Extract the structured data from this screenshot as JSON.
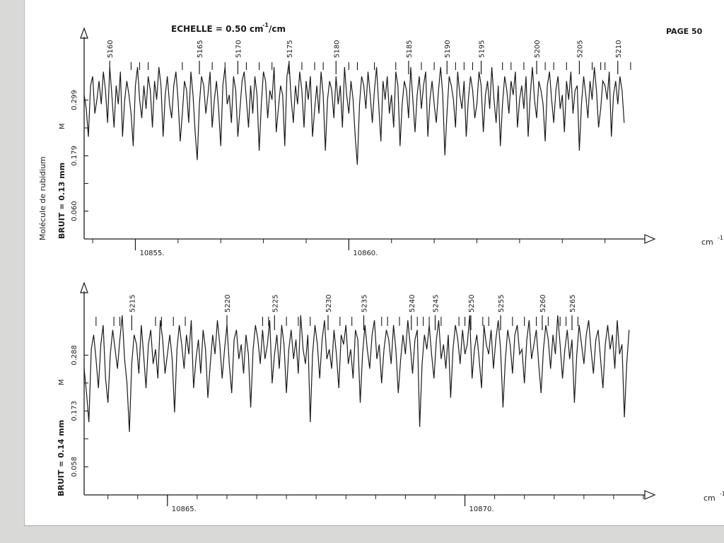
{
  "page": {
    "scale_label": "ECHELLE = 0.50 cm",
    "scale_exp": "-1",
    "scale_unit": "/cm",
    "page_number": "PAGE 50",
    "molecule_label": "Molécule de rubidium"
  },
  "chart_data": [
    {
      "type": "line",
      "xlabel": "cm",
      "xlabel_exp": "-1",
      "ylabel": "BRUIT = 0.13 mm",
      "y_marker": "M",
      "xlim": [
        10853.8,
        10866.9
      ],
      "ylim": [
        0,
        0.42
      ],
      "y_ticks": [
        "0.299",
        "0.179",
        "0.060"
      ],
      "y_tick_values": [
        0.299,
        0.179,
        0.06
      ],
      "x_tick_labels": [
        {
          "x": 10855,
          "label": "10855."
        },
        {
          "x": 10860,
          "label": "10860."
        }
      ],
      "x_minor_step": 1,
      "line_ids": [
        {
          "x": 10854.4,
          "label": "5160"
        },
        {
          "x": 10856.5,
          "label": "5165"
        },
        {
          "x": 10857.4,
          "label": "5170"
        },
        {
          "x": 10858.6,
          "label": "5175"
        },
        {
          "x": 10859.7,
          "label": "5180"
        },
        {
          "x": 10861.4,
          "label": "5185"
        },
        {
          "x": 10862.3,
          "label": "5190"
        },
        {
          "x": 10863.1,
          "label": "5195"
        },
        {
          "x": 10864.4,
          "label": "5200"
        },
        {
          "x": 10865.4,
          "label": "5205"
        },
        {
          "x": 10866.3,
          "label": "5210"
        }
      ],
      "minor_ids": [
        10854.9,
        10855.1,
        10855.3,
        10856.1,
        10856.8,
        10857.1,
        10857.6,
        10857.9,
        10858.2,
        10858.9,
        10859.2,
        10859.4,
        10860.0,
        10860.2,
        10860.6,
        10861.1,
        10861.7,
        10862.0,
        10862.5,
        10862.7,
        10862.9,
        10863.6,
        10863.8,
        10864.1,
        10864.6,
        10864.8,
        10865.1,
        10865.7,
        10865.9,
        10866.0,
        10866.6
      ],
      "series": [
        {
          "x_start": 10853.8,
          "x_step": 0.05,
          "values": [
            0.31,
            0.28,
            0.22,
            0.33,
            0.35,
            0.27,
            0.3,
            0.34,
            0.29,
            0.36,
            0.32,
            0.25,
            0.37,
            0.31,
            0.24,
            0.33,
            0.29,
            0.36,
            0.22,
            0.3,
            0.34,
            0.31,
            0.27,
            0.2,
            0.33,
            0.37,
            0.3,
            0.26,
            0.33,
            0.28,
            0.35,
            0.32,
            0.24,
            0.34,
            0.3,
            0.37,
            0.33,
            0.22,
            0.31,
            0.35,
            0.29,
            0.26,
            0.33,
            0.36,
            0.3,
            0.21,
            0.27,
            0.34,
            0.32,
            0.25,
            0.36,
            0.31,
            0.23,
            0.17,
            0.29,
            0.35,
            0.33,
            0.27,
            0.31,
            0.36,
            0.24,
            0.3,
            0.34,
            0.28,
            0.2,
            0.33,
            0.37,
            0.29,
            0.31,
            0.25,
            0.35,
            0.32,
            0.22,
            0.28,
            0.34,
            0.36,
            0.3,
            0.24,
            0.33,
            0.27,
            0.35,
            0.31,
            0.19,
            0.29,
            0.36,
            0.34,
            0.26,
            0.32,
            0.3,
            0.37,
            0.23,
            0.28,
            0.33,
            0.31,
            0.2,
            0.35,
            0.38,
            0.3,
            0.25,
            0.33,
            0.29,
            0.36,
            0.32,
            0.24,
            0.34,
            0.3,
            0.35,
            0.22,
            0.28,
            0.33,
            0.27,
            0.36,
            0.31,
            0.19,
            0.3,
            0.34,
            0.32,
            0.26,
            0.35,
            0.29,
            0.33,
            0.24,
            0.37,
            0.31,
            0.27,
            0.34,
            0.3,
            0.22,
            0.16,
            0.29,
            0.35,
            0.33,
            0.28,
            0.36,
            0.31,
            0.25,
            0.32,
            0.37,
            0.29,
            0.21,
            0.34,
            0.3,
            0.35,
            0.27,
            0.31,
            0.24,
            0.36,
            0.33,
            0.2,
            0.29,
            0.34,
            0.32,
            0.26,
            0.37,
            0.3,
            0.23,
            0.31,
            0.35,
            0.28,
            0.33,
            0.36,
            0.22,
            0.3,
            0.34,
            0.29,
            0.25,
            0.32,
            0.37,
            0.31,
            0.18,
            0.27,
            0.35,
            0.33,
            0.3,
            0.24,
            0.36,
            0.31,
            0.28,
            0.34,
            0.22,
            0.3,
            0.35,
            0.32,
            0.26,
            0.29,
            0.36,
            0.33,
            0.23,
            0.31,
            0.34,
            0.28,
            0.37,
            0.3,
            0.25,
            0.33,
            0.2,
            0.29,
            0.35,
            0.32,
            0.27,
            0.34,
            0.31,
            0.36,
            0.24,
            0.3,
            0.33,
            0.28,
            0.35,
            0.22,
            0.31,
            0.37,
            0.3,
            0.26,
            0.34,
            0.32,
            0.29,
            0.21,
            0.33,
            0.36,
            0.3,
            0.25,
            0.32,
            0.35,
            0.28,
            0.31,
            0.23,
            0.34,
            0.3,
            0.36,
            0.27,
            0.32,
            0.33,
            0.19,
            0.29,
            0.35,
            0.31,
            0.26,
            0.34,
            0.3,
            0.37,
            0.32,
            0.24,
            0.28,
            0.34,
            0.33,
            0.3,
            0.36,
            0.22,
            0.31,
            0.34,
            0.29,
            0.35,
            0.32,
            0.25
          ]
        }
      ]
    },
    {
      "type": "line",
      "xlabel": "cm",
      "xlabel_exp": "-1",
      "ylabel": "BRUIT = 0.14 mm",
      "y_marker": "M",
      "xlim": [
        10863.6,
        10873.0
      ],
      "ylim": [
        0,
        0.405
      ],
      "y_ticks": [
        "0.288",
        "0.173",
        "0.058"
      ],
      "y_tick_values": [
        0.288,
        0.173,
        0.058
      ],
      "x_tick_labels": [
        {
          "x": 10865,
          "label": "10865."
        },
        {
          "x": 10870,
          "label": "10870."
        }
      ],
      "x_minor_step": 0.5,
      "line_ids": [
        {
          "x": 10864.4,
          "label": "5215"
        },
        {
          "x": 10866.0,
          "label": "5220"
        },
        {
          "x": 10866.8,
          "label": "5225"
        },
        {
          "x": 10867.7,
          "label": "5230"
        },
        {
          "x": 10868.3,
          "label": "5235"
        },
        {
          "x": 10869.1,
          "label": "5240"
        },
        {
          "x": 10869.5,
          "label": "5245"
        },
        {
          "x": 10870.1,
          "label": "5250"
        },
        {
          "x": 10870.6,
          "label": "5255"
        },
        {
          "x": 10871.3,
          "label": "5260"
        },
        {
          "x": 10871.8,
          "label": "5265"
        }
      ],
      "minor_ids": [
        10863.8,
        10864.1,
        10864.2,
        10864.8,
        10864.9,
        10865.1,
        10865.3,
        10866.6,
        10866.7,
        10867.0,
        10867.2,
        10867.4,
        10867.9,
        10868.1,
        10868.6,
        10868.7,
        10868.9,
        10869.2,
        10869.3,
        10869.4,
        10869.6,
        10869.9,
        10870.0,
        10870.3,
        10870.4,
        10870.8,
        10871.0,
        10871.2,
        10871.4,
        10871.6,
        10871.7,
        10871.9
      ],
      "series": [
        {
          "x_start": 10863.6,
          "x_step": 0.04,
          "values": [
            0.26,
            0.21,
            0.15,
            0.3,
            0.33,
            0.28,
            0.22,
            0.31,
            0.35,
            0.24,
            0.19,
            0.29,
            0.34,
            0.3,
            0.26,
            0.32,
            0.37,
            0.28,
            0.23,
            0.13,
            0.27,
            0.33,
            0.31,
            0.25,
            0.35,
            0.29,
            0.22,
            0.31,
            0.34,
            0.27,
            0.3,
            0.24,
            0.36,
            0.32,
            0.25,
            0.29,
            0.33,
            0.28,
            0.17,
            0.3,
            0.35,
            0.31,
            0.26,
            0.33,
            0.29,
            0.36,
            0.22,
            0.28,
            0.32,
            0.25,
            0.34,
            0.3,
            0.2,
            0.27,
            0.33,
            0.29,
            0.36,
            0.31,
            0.24,
            0.3,
            0.35,
            0.27,
            0.21,
            0.32,
            0.34,
            0.28,
            0.31,
            0.25,
            0.33,
            0.29,
            0.18,
            0.3,
            0.35,
            0.32,
            0.27,
            0.34,
            0.28,
            0.31,
            0.36,
            0.23,
            0.29,
            0.33,
            0.26,
            0.35,
            0.31,
            0.21,
            0.3,
            0.34,
            0.28,
            0.32,
            0.25,
            0.37,
            0.3,
            0.27,
            0.33,
            0.15,
            0.29,
            0.35,
            0.31,
            0.24,
            0.32,
            0.36,
            0.28,
            0.3,
            0.26,
            0.34,
            0.29,
            0.22,
            0.33,
            0.31,
            0.35,
            0.27,
            0.3,
            0.24,
            0.34,
            0.32,
            0.19,
            0.29,
            0.35,
            0.3,
            0.26,
            0.33,
            0.36,
            0.28,
            0.31,
            0.23,
            0.3,
            0.34,
            0.32,
            0.27,
            0.35,
            0.3,
            0.21,
            0.28,
            0.33,
            0.29,
            0.36,
            0.31,
            0.25,
            0.32,
            0.34,
            0.14,
            0.27,
            0.33,
            0.3,
            0.35,
            0.29,
            0.24,
            0.32,
            0.36,
            0.28,
            0.31,
            0.26,
            0.33,
            0.2,
            0.3,
            0.35,
            0.32,
            0.27,
            0.34,
            0.29,
            0.31,
            0.37,
            0.24,
            0.3,
            0.33,
            0.28,
            0.22,
            0.35,
            0.31,
            0.29,
            0.34,
            0.26,
            0.32,
            0.36,
            0.3,
            0.18,
            0.28,
            0.34,
            0.31,
            0.25,
            0.33,
            0.35,
            0.29,
            0.3,
            0.23,
            0.32,
            0.36,
            0.28,
            0.31,
            0.34,
            0.27,
            0.21,
            0.3,
            0.35,
            0.32,
            0.26,
            0.33,
            0.29,
            0.37,
            0.31,
            0.24,
            0.3,
            0.34,
            0.28,
            0.32,
            0.19,
            0.29,
            0.35,
            0.31,
            0.27,
            0.33,
            0.36,
            0.3,
            0.25,
            0.32,
            0.34,
            0.28,
            0.22,
            0.31,
            0.35,
            0.3,
            0.33,
            0.26,
            0.36,
            0.29,
            0.31,
            0.16,
            0.27,
            0.34,
            0.32,
            0.3,
            0.35,
            0.28,
            0.24,
            0.33,
            0.31,
            0.36,
            0.29,
            0.21,
            0.3,
            0.34,
            0.32
          ]
        }
      ]
    }
  ]
}
